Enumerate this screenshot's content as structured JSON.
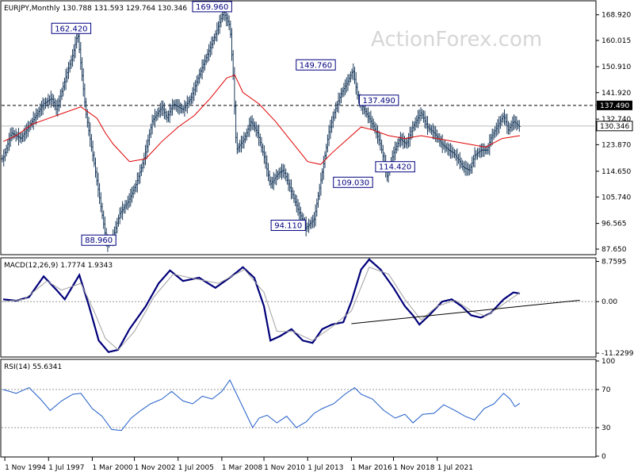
{
  "watermark": "ActionForex.com",
  "chart_data": [
    {
      "type": "bar",
      "panel": "price",
      "title": "EURJPY,Monthly  130.788 131.593 129.764 130.346",
      "ohlc": {
        "open": 130.788,
        "high": 131.593,
        "low": 129.764,
        "close": 130.346
      },
      "last_value": "130.346",
      "ylim": [
        86.0,
        173.5
      ],
      "yticks": [
        "168.920",
        "160.015",
        "150.910",
        "141.920",
        "132.740",
        "123.870",
        "114.650",
        "105.740",
        "96.565",
        "87.650"
      ],
      "hline": {
        "value": 137.49,
        "label": "137.490"
      },
      "annotations": [
        {
          "label": "169.960",
          "x": 2007.6,
          "y": 169.96
        },
        {
          "label": "162.420",
          "x": 1998.9,
          "y": 162.42
        },
        {
          "label": "149.760",
          "x": 2014.0,
          "y": 149.76
        },
        {
          "label": "137.490",
          "x": 2017.9,
          "y": 137.49
        },
        {
          "label": "109.030",
          "x": 2016.3,
          "y": 109.03
        },
        {
          "label": "114.420",
          "x": 2018.9,
          "y": 114.42
        },
        {
          "label": "94.110",
          "x": 2012.3,
          "y": 94.11
        },
        {
          "label": "88.960",
          "x": 2000.6,
          "y": 88.96
        }
      ],
      "price_path": [
        [
          1994.7,
          119
        ],
        [
          1995.2,
          128
        ],
        [
          1995.8,
          126
        ],
        [
          1996.5,
          132
        ],
        [
          1997.2,
          138
        ],
        [
          1997.7,
          140
        ],
        [
          1998.0,
          136
        ],
        [
          1998.6,
          148
        ],
        [
          1999.0,
          155
        ],
        [
          1999.3,
          162.4
        ],
        [
          1999.8,
          135
        ],
        [
          2000.3,
          118
        ],
        [
          2000.8,
          100
        ],
        [
          2001.1,
          89
        ],
        [
          2001.5,
          92
        ],
        [
          2001.9,
          100
        ],
        [
          2002.4,
          104
        ],
        [
          2002.9,
          110
        ],
        [
          2003.3,
          117
        ],
        [
          2003.6,
          124
        ],
        [
          2003.9,
          132
        ],
        [
          2004.5,
          137
        ],
        [
          2004.8,
          133
        ],
        [
          2005.2,
          138
        ],
        [
          2005.8,
          136
        ],
        [
          2006.3,
          140
        ],
        [
          2006.8,
          148
        ],
        [
          2007.3,
          155
        ],
        [
          2007.8,
          162
        ],
        [
          2008.3,
          170
        ],
        [
          2008.7,
          165
        ],
        [
          2008.9,
          148
        ],
        [
          2009.1,
          122
        ],
        [
          2009.6,
          126
        ],
        [
          2010.0,
          132
        ],
        [
          2010.4,
          128
        ],
        [
          2010.8,
          120
        ],
        [
          2011.2,
          110
        ],
        [
          2011.7,
          114
        ],
        [
          2012.0,
          115
        ],
        [
          2012.6,
          106
        ],
        [
          2013.0,
          100
        ],
        [
          2013.4,
          95
        ],
        [
          2013.9,
          98
        ],
        [
          2014.3,
          111
        ],
        [
          2014.8,
          128
        ],
        [
          2015.2,
          136
        ],
        [
          2015.6,
          142
        ],
        [
          2016.0,
          146
        ],
        [
          2016.3,
          149.8
        ],
        [
          2016.6,
          140
        ],
        [
          2017.2,
          134
        ],
        [
          2017.6,
          130
        ],
        [
          2018.0,
          124
        ],
        [
          2018.4,
          113
        ],
        [
          2018.8,
          121
        ],
        [
          2019.2,
          126
        ],
        [
          2019.6,
          124
        ],
        [
          2020.0,
          130
        ],
        [
          2020.5,
          135
        ],
        [
          2020.9,
          130
        ],
        [
          2021.3,
          128
        ],
        [
          2021.8,
          124
        ],
        [
          2022.2,
          122
        ],
        [
          2022.5,
          121
        ],
        [
          2022.9,
          118
        ],
        [
          2023.1,
          116
        ],
        [
          2023.5,
          115
        ],
        [
          2023.8,
          120
        ],
        [
          2024.2,
          122
        ],
        [
          2024.6,
          122
        ],
        [
          2024.8,
          126
        ],
        [
          2025.2,
          130
        ],
        [
          2025.6,
          134
        ],
        [
          2025.9,
          129
        ],
        [
          2026.2,
          132
        ],
        [
          2026.6,
          130
        ]
      ],
      "ma_path": [
        [
          1994.7,
          125
        ],
        [
          1995.5,
          127
        ],
        [
          1996.5,
          131
        ],
        [
          1997.5,
          133
        ],
        [
          1998.5,
          135
        ],
        [
          1999.5,
          137
        ],
        [
          2000.5,
          133
        ],
        [
          2001.0,
          128
        ],
        [
          2001.5,
          124
        ],
        [
          2002.5,
          118
        ],
        [
          2003.5,
          119
        ],
        [
          2004.5,
          125
        ],
        [
          2005.5,
          130
        ],
        [
          2006.5,
          134
        ],
        [
          2007.5,
          140
        ],
        [
          2008.5,
          147
        ],
        [
          2009.0,
          148
        ],
        [
          2009.5,
          142
        ],
        [
          2010.5,
          138
        ],
        [
          2011.5,
          132
        ],
        [
          2012.5,
          125
        ],
        [
          2013.5,
          118
        ],
        [
          2014.3,
          117
        ],
        [
          2015.0,
          121
        ],
        [
          2016.0,
          126
        ],
        [
          2016.8,
          130
        ],
        [
          2017.5,
          129
        ],
        [
          2018.5,
          127
        ],
        [
          2019.5,
          126
        ],
        [
          2020.5,
          127
        ],
        [
          2021.5,
          126
        ],
        [
          2022.5,
          125
        ],
        [
          2023.5,
          124
        ],
        [
          2024.5,
          123
        ],
        [
          2025.5,
          126
        ],
        [
          2026.6,
          127
        ]
      ]
    },
    {
      "type": "line",
      "panel": "macd",
      "title": "MACD(12,26,9) 1.7774 1.9343",
      "params": [
        12,
        26,
        9
      ],
      "values": {
        "macd": 1.7774,
        "signal": 1.9343
      },
      "ylim": [
        -11.9,
        9.2
      ],
      "yticks": [
        "8.7595",
        "0.00",
        "-11.2299"
      ],
      "trendline": [
        [
          2016.2,
          -4.8
        ],
        [
          2030.3,
          0.3
        ]
      ],
      "series": [
        {
          "role": "macd",
          "points": [
            [
              1994.7,
              0.5
            ],
            [
              1995.5,
              0.2
            ],
            [
              1996.3,
              1.0
            ],
            [
              1997.2,
              5.5
            ],
            [
              1998.0,
              2.5
            ],
            [
              1998.5,
              0.5
            ],
            [
              1999.4,
              5.8
            ],
            [
              2000.0,
              -1.0
            ],
            [
              2000.6,
              -8.5
            ],
            [
              2001.2,
              -11.0
            ],
            [
              2001.8,
              -10.5
            ],
            [
              2002.5,
              -6.0
            ],
            [
              2003.5,
              -1.0
            ],
            [
              2004.3,
              4.0
            ],
            [
              2005.0,
              6.8
            ],
            [
              2005.8,
              4.5
            ],
            [
              2006.8,
              5.2
            ],
            [
              2007.8,
              3.0
            ],
            [
              2008.8,
              5.5
            ],
            [
              2009.5,
              7.5
            ],
            [
              2010.2,
              5.2
            ],
            [
              2010.8,
              -1.0
            ],
            [
              2011.2,
              -8.5
            ],
            [
              2011.8,
              -7.5
            ],
            [
              2012.5,
              -6.0
            ],
            [
              2013.2,
              -8.5
            ],
            [
              2013.8,
              -9.0
            ],
            [
              2014.4,
              -6.0
            ],
            [
              2015.0,
              -5.0
            ],
            [
              2015.7,
              -4.5
            ],
            [
              2016.2,
              0.0
            ],
            [
              2016.8,
              7.0
            ],
            [
              2017.3,
              9.2
            ],
            [
              2018.0,
              7.0
            ],
            [
              2018.8,
              3.0
            ],
            [
              2019.5,
              -1.0
            ],
            [
              2020.0,
              -3.0
            ],
            [
              2020.4,
              -5.0
            ],
            [
              2021.0,
              -3.0
            ],
            [
              2021.8,
              0.0
            ],
            [
              2022.4,
              0.5
            ],
            [
              2023.0,
              -1.0
            ],
            [
              2023.6,
              -3.0
            ],
            [
              2024.2,
              -3.5
            ],
            [
              2024.8,
              -2.5
            ],
            [
              2025.6,
              0.5
            ],
            [
              2026.2,
              2.0
            ],
            [
              2026.6,
              1.78
            ]
          ]
        },
        {
          "role": "signal",
          "points": [
            [
              1994.7,
              0.0
            ],
            [
              1996.0,
              0.5
            ],
            [
              1997.4,
              4.5
            ],
            [
              1998.3,
              2.5
            ],
            [
              1999.5,
              4.0
            ],
            [
              2000.3,
              -2.0
            ],
            [
              2001.0,
              -8.0
            ],
            [
              2001.8,
              -10.5
            ],
            [
              2002.8,
              -6.5
            ],
            [
              2004.0,
              1.0
            ],
            [
              2005.2,
              6.0
            ],
            [
              2006.5,
              5.0
            ],
            [
              2008.0,
              4.0
            ],
            [
              2009.6,
              7.0
            ],
            [
              2010.8,
              2.0
            ],
            [
              2011.6,
              -6.5
            ],
            [
              2012.6,
              -6.5
            ],
            [
              2013.8,
              -8.5
            ],
            [
              2015.0,
              -5.5
            ],
            [
              2016.2,
              -2.0
            ],
            [
              2017.3,
              7.5
            ],
            [
              2018.5,
              6.0
            ],
            [
              2019.5,
              0.5
            ],
            [
              2020.5,
              -4.0
            ],
            [
              2021.5,
              -1.0
            ],
            [
              2022.6,
              0.3
            ],
            [
              2023.6,
              -2.0
            ],
            [
              2024.5,
              -3.2
            ],
            [
              2025.6,
              -0.5
            ],
            [
              2026.6,
              1.93
            ]
          ]
        }
      ]
    },
    {
      "type": "line",
      "panel": "rsi",
      "title": "RSI(14) 55.6341",
      "period": 14,
      "value": 55.6341,
      "ylim": [
        0,
        100
      ],
      "yticks": [
        "100",
        "70",
        "30",
        "0"
      ],
      "levels": [
        70,
        30
      ],
      "points": [
        [
          1994.7,
          70
        ],
        [
          1995.5,
          66
        ],
        [
          1996.3,
          72
        ],
        [
          1997.0,
          60
        ],
        [
          1997.6,
          48
        ],
        [
          1998.3,
          58
        ],
        [
          1999.0,
          65
        ],
        [
          1999.5,
          66
        ],
        [
          2000.2,
          50
        ],
        [
          2000.8,
          42
        ],
        [
          2001.4,
          28
        ],
        [
          2002.0,
          27
        ],
        [
          2002.6,
          40
        ],
        [
          2003.2,
          48
        ],
        [
          2003.8,
          55
        ],
        [
          2004.5,
          60
        ],
        [
          2005.1,
          68
        ],
        [
          2005.8,
          58
        ],
        [
          2006.4,
          55
        ],
        [
          2007.0,
          63
        ],
        [
          2007.6,
          60
        ],
        [
          2008.2,
          68
        ],
        [
          2008.7,
          80
        ],
        [
          2009.2,
          62
        ],
        [
          2009.6,
          48
        ],
        [
          2010.1,
          30
        ],
        [
          2010.5,
          40
        ],
        [
          2011.0,
          43
        ],
        [
          2011.6,
          35
        ],
        [
          2012.2,
          42
        ],
        [
          2012.8,
          30
        ],
        [
          2013.4,
          36
        ],
        [
          2013.9,
          45
        ],
        [
          2014.4,
          50
        ],
        [
          2015.1,
          55
        ],
        [
          2015.8,
          65
        ],
        [
          2016.4,
          72
        ],
        [
          2016.8,
          65
        ],
        [
          2017.5,
          60
        ],
        [
          2018.2,
          48
        ],
        [
          2018.9,
          40
        ],
        [
          2019.5,
          44
        ],
        [
          2020.0,
          35
        ],
        [
          2020.6,
          44
        ],
        [
          2021.3,
          45
        ],
        [
          2021.9,
          54
        ],
        [
          2022.6,
          48
        ],
        [
          2023.2,
          42
        ],
        [
          2023.8,
          38
        ],
        [
          2024.4,
          50
        ],
        [
          2025.0,
          55
        ],
        [
          2025.6,
          66
        ],
        [
          2026.0,
          60
        ],
        [
          2026.3,
          52
        ],
        [
          2026.6,
          55.6
        ]
      ]
    }
  ],
  "x_axis": {
    "ticks": [
      {
        "label": "1 Nov 1994",
        "x": 1994.8
      },
      {
        "label": "1 Jul 1997",
        "x": 1997.5
      },
      {
        "label": "1 Mar 2000",
        "x": 2000.2
      },
      {
        "label": "1 Nov 2002",
        "x": 2002.8
      },
      {
        "label": "1 Jul 2005",
        "x": 2005.5
      },
      {
        "label": "1 Mar 2008",
        "x": 2008.2
      },
      {
        "label": "1 Nov 2010",
        "x": 2010.8
      },
      {
        "label": "1 Jul 2013",
        "x": 2013.5
      },
      {
        "label": "1 Mar 2016",
        "x": 2016.2
      },
      {
        "label": "1 Nov 2018",
        "x": 2018.8
      },
      {
        "label": "1 Jul 2021",
        "x": 2021.5
      }
    ]
  }
}
